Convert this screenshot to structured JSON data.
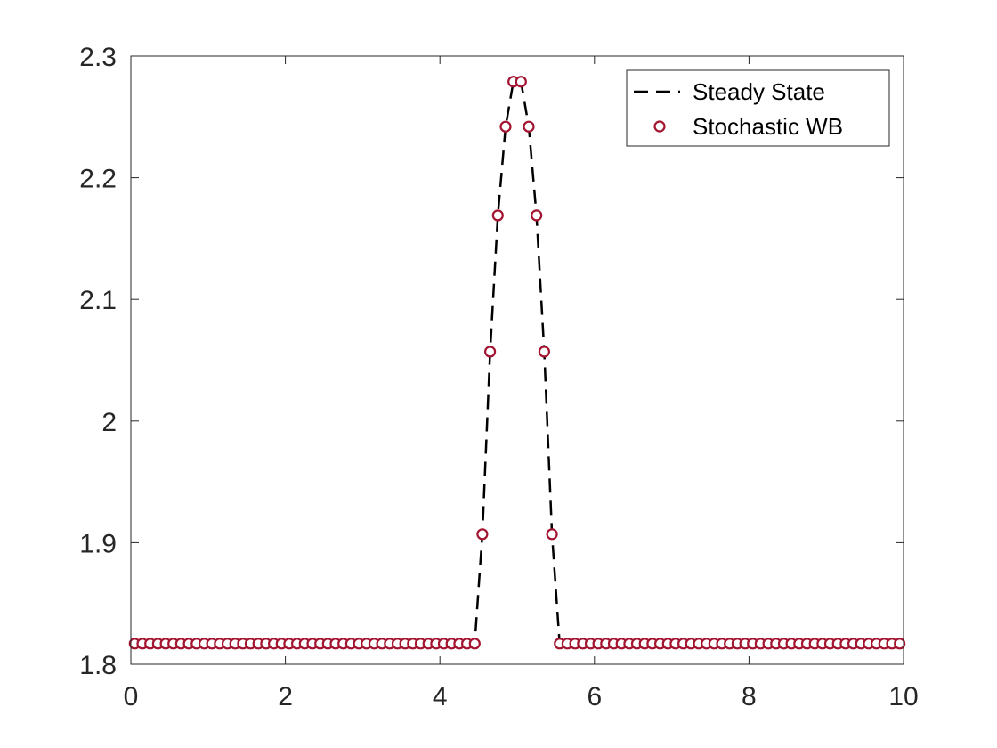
{
  "chart_data": {
    "type": "line",
    "title": "",
    "xlabel": "",
    "ylabel": "",
    "xlim": [
      0,
      10
    ],
    "ylim": [
      1.8,
      2.3
    ],
    "xticks": [
      0,
      2,
      4,
      6,
      8,
      10
    ],
    "xtick_labels": [
      "0",
      "2",
      "4",
      "6",
      "8",
      "10"
    ],
    "yticks": [
      1.8,
      1.9,
      2.0,
      2.1,
      2.2,
      2.3
    ],
    "ytick_labels": [
      "1.8",
      "1.9",
      "2",
      "2.1",
      "2.2",
      "2.3"
    ],
    "grid": false,
    "legend_position": "top-right",
    "series": [
      {
        "name": "Steady State",
        "style": "dashed-line",
        "color": "#000000",
        "x": [
          0,
          0.1,
          0.2,
          0.3,
          0.4,
          0.5,
          0.6,
          0.7,
          0.8,
          0.9,
          1.0,
          1.1,
          1.2,
          1.3,
          1.4,
          1.5,
          1.6,
          1.7,
          1.8,
          1.9,
          2.0,
          2.1,
          2.2,
          2.3,
          2.4,
          2.5,
          2.6,
          2.7,
          2.8,
          2.9,
          3.0,
          3.1,
          3.2,
          3.3,
          3.4,
          3.5,
          3.6,
          3.7,
          3.8,
          3.9,
          4.0,
          4.1,
          4.2,
          4.3,
          4.4,
          4.45,
          4.55,
          4.65,
          4.75,
          4.85,
          4.95,
          5.05,
          5.15,
          5.25,
          5.35,
          5.45,
          5.55,
          5.65,
          5.75,
          5.85,
          5.95,
          6.05,
          6.15,
          6.25,
          6.35,
          6.45,
          6.55,
          6.65,
          6.75,
          6.85,
          6.95,
          7.05,
          7.15,
          7.25,
          7.35,
          7.45,
          7.55,
          7.65,
          7.75,
          7.85,
          7.95,
          8.05,
          8.15,
          8.25,
          8.35,
          8.45,
          8.55,
          8.65,
          8.75,
          8.85,
          8.95,
          9.05,
          9.15,
          9.25,
          9.35,
          9.45,
          9.55,
          9.65,
          9.75,
          9.85,
          9.95
        ],
        "y": [
          1.817,
          1.817,
          1.817,
          1.817,
          1.817,
          1.817,
          1.817,
          1.817,
          1.817,
          1.817,
          1.817,
          1.817,
          1.817,
          1.817,
          1.817,
          1.817,
          1.817,
          1.817,
          1.817,
          1.817,
          1.817,
          1.817,
          1.817,
          1.817,
          1.817,
          1.817,
          1.817,
          1.817,
          1.817,
          1.817,
          1.817,
          1.817,
          1.817,
          1.817,
          1.817,
          1.817,
          1.817,
          1.817,
          1.817,
          1.817,
          1.817,
          1.817,
          1.817,
          1.817,
          1.817,
          1.817,
          1.907,
          2.057,
          2.169,
          2.242,
          2.279,
          2.279,
          2.242,
          2.169,
          2.057,
          1.907,
          1.817,
          1.817,
          1.817,
          1.817,
          1.817,
          1.817,
          1.817,
          1.817,
          1.817,
          1.817,
          1.817,
          1.817,
          1.817,
          1.817,
          1.817,
          1.817,
          1.817,
          1.817,
          1.817,
          1.817,
          1.817,
          1.817,
          1.817,
          1.817,
          1.817,
          1.817,
          1.817,
          1.817,
          1.817,
          1.817,
          1.817,
          1.817,
          1.817,
          1.817,
          1.817,
          1.817,
          1.817,
          1.817,
          1.817,
          1.817,
          1.817,
          1.817,
          1.817,
          1.817,
          1.817
        ]
      },
      {
        "name": "Stochastic WB",
        "style": "circle-markers",
        "color": "#a2142f",
        "x": [
          0.05,
          0.15,
          0.25,
          0.35,
          0.45,
          0.55,
          0.65,
          0.75,
          0.85,
          0.95,
          1.05,
          1.15,
          1.25,
          1.35,
          1.45,
          1.55,
          1.65,
          1.75,
          1.85,
          1.95,
          2.05,
          2.15,
          2.25,
          2.35,
          2.45,
          2.55,
          2.65,
          2.75,
          2.85,
          2.95,
          3.05,
          3.15,
          3.25,
          3.35,
          3.45,
          3.55,
          3.65,
          3.75,
          3.85,
          3.95,
          4.05,
          4.15,
          4.25,
          4.35,
          4.45,
          4.55,
          4.65,
          4.75,
          4.85,
          4.95,
          5.05,
          5.15,
          5.25,
          5.35,
          5.45,
          5.55,
          5.65,
          5.75,
          5.85,
          5.95,
          6.05,
          6.15,
          6.25,
          6.35,
          6.45,
          6.55,
          6.65,
          6.75,
          6.85,
          6.95,
          7.05,
          7.15,
          7.25,
          7.35,
          7.45,
          7.55,
          7.65,
          7.75,
          7.85,
          7.95,
          8.05,
          8.15,
          8.25,
          8.35,
          8.45,
          8.55,
          8.65,
          8.75,
          8.85,
          8.95,
          9.05,
          9.15,
          9.25,
          9.35,
          9.45,
          9.55,
          9.65,
          9.75,
          9.85,
          9.95
        ],
        "y": [
          1.817,
          1.817,
          1.817,
          1.817,
          1.817,
          1.817,
          1.817,
          1.817,
          1.817,
          1.817,
          1.817,
          1.817,
          1.817,
          1.817,
          1.817,
          1.817,
          1.817,
          1.817,
          1.817,
          1.817,
          1.817,
          1.817,
          1.817,
          1.817,
          1.817,
          1.817,
          1.817,
          1.817,
          1.817,
          1.817,
          1.817,
          1.817,
          1.817,
          1.817,
          1.817,
          1.817,
          1.817,
          1.817,
          1.817,
          1.817,
          1.817,
          1.817,
          1.817,
          1.817,
          1.817,
          1.907,
          2.057,
          2.169,
          2.242,
          2.279,
          2.279,
          2.242,
          2.169,
          2.057,
          1.907,
          1.817,
          1.817,
          1.817,
          1.817,
          1.817,
          1.817,
          1.817,
          1.817,
          1.817,
          1.817,
          1.817,
          1.817,
          1.817,
          1.817,
          1.817,
          1.817,
          1.817,
          1.817,
          1.817,
          1.817,
          1.817,
          1.817,
          1.817,
          1.817,
          1.817,
          1.817,
          1.817,
          1.817,
          1.817,
          1.817,
          1.817,
          1.817,
          1.817,
          1.817,
          1.817,
          1.817,
          1.817,
          1.817,
          1.817,
          1.817,
          1.817,
          1.817,
          1.817,
          1.817,
          1.817
        ]
      }
    ]
  }
}
